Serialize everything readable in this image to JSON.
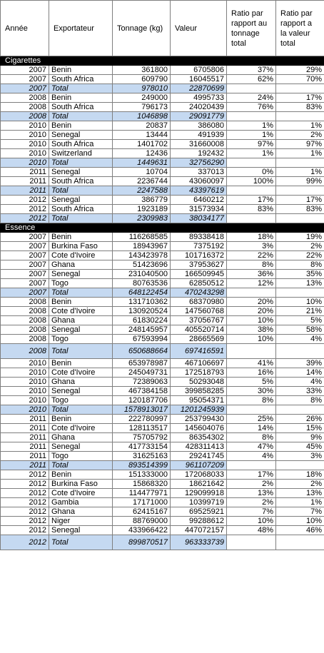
{
  "headers": {
    "annee": "Année",
    "exportateur": "Exportateur",
    "tonnage": "Tonnage (kg)",
    "valeur": "Valeur",
    "ratio_tonnage": "Ratio par rapport au tonnage total",
    "ratio_valeur": "Ratio par rapport a la valeur total"
  },
  "sections": [
    {
      "title": "Cigarettes",
      "rows": [
        {
          "year": "2007",
          "exporter": "Benin",
          "tonnage": "361800",
          "valeur": "6705806",
          "rt": "37%",
          "rv": "29%"
        },
        {
          "year": "2007",
          "exporter": "South Africa",
          "tonnage": "609790",
          "valeur": "16045517",
          "rt": "62%",
          "rv": "70%"
        },
        {
          "year": "2007",
          "exporter": "Total",
          "tonnage": "978010",
          "valeur": "22870699",
          "total": true
        },
        {
          "year": "2008",
          "exporter": "Benin",
          "tonnage": "249000",
          "valeur": "4995733",
          "rt": "24%",
          "rv": "17%"
        },
        {
          "year": "2008",
          "exporter": "South Africa",
          "tonnage": "796173",
          "valeur": "24020439",
          "rt": "76%",
          "rv": "83%"
        },
        {
          "year": "2008",
          "exporter": "Total",
          "tonnage": "1046898",
          "valeur": "29091779",
          "total": true
        },
        {
          "year": "2010",
          "exporter": "Benin",
          "tonnage": "20837",
          "valeur": "386080",
          "rt": "1%",
          "rv": "1%"
        },
        {
          "year": "2010",
          "exporter": "Senegal",
          "tonnage": "13444",
          "valeur": "491939",
          "rt": "1%",
          "rv": "2%"
        },
        {
          "year": "2010",
          "exporter": "South Africa",
          "tonnage": "1401702",
          "valeur": "31660008",
          "rt": "97%",
          "rv": "97%"
        },
        {
          "year": "2010",
          "exporter": "Switzerland",
          "tonnage": "12436",
          "valeur": "192432",
          "rt": "1%",
          "rv": "1%"
        },
        {
          "year": "2010",
          "exporter": "Total",
          "tonnage": "1449631",
          "valeur": "32756290",
          "total": true
        },
        {
          "year": "2011",
          "exporter": "Senegal",
          "tonnage": "10704",
          "valeur": "337013",
          "rt": "0%",
          "rv": "1%"
        },
        {
          "year": "2011",
          "exporter": "South Africa",
          "tonnage": "2236744",
          "valeur": "43060097",
          "rt": "100%",
          "rv": "99%"
        },
        {
          "year": "2011",
          "exporter": "Total",
          "tonnage": "2247588",
          "valeur": "43397619",
          "total": true
        },
        {
          "year": "2012",
          "exporter": "Senegal",
          "tonnage": "386779",
          "valeur": "6460212",
          "rt": "17%",
          "rv": "17%"
        },
        {
          "year": "2012",
          "exporter": "South Africa",
          "tonnage": "1923189",
          "valeur": "31573934",
          "rt": "83%",
          "rv": "83%"
        },
        {
          "year": "2012",
          "exporter": "Total",
          "tonnage": "2309983",
          "valeur": "38034177",
          "total": true
        }
      ]
    },
    {
      "title": "Essence",
      "rows": [
        {
          "year": "2007",
          "exporter": "Benin",
          "tonnage": "116268585",
          "valeur": "89338418",
          "rt": "18%",
          "rv": "19%"
        },
        {
          "year": "2007",
          "exporter": "Burkina Faso",
          "tonnage": "18943967",
          "valeur": "7375192",
          "rt": "3%",
          "rv": "2%"
        },
        {
          "year": "2007",
          "exporter": "Cote d'Ivoire",
          "tonnage": "143423978",
          "valeur": "101716372",
          "rt": "22%",
          "rv": "22%"
        },
        {
          "year": "2007",
          "exporter": "Ghana",
          "tonnage": "51423696",
          "valeur": "37953627",
          "rt": "8%",
          "rv": "8%"
        },
        {
          "year": "2007",
          "exporter": "Senegal",
          "tonnage": "231040500",
          "valeur": "166509945",
          "rt": "36%",
          "rv": "35%"
        },
        {
          "year": "2007",
          "exporter": "Togo",
          "tonnage": "80763536",
          "valeur": "62850512",
          "rt": "12%",
          "rv": "13%"
        },
        {
          "year": "2007",
          "exporter": "Total",
          "tonnage": "648122454",
          "valeur": "470243298",
          "total": true
        },
        {
          "year": "2008",
          "exporter": "Benin",
          "tonnage": "131710362",
          "valeur": "68370980",
          "rt": "20%",
          "rv": "10%"
        },
        {
          "year": "2008",
          "exporter": "Cote d'Ivoire",
          "tonnage": "130920524",
          "valeur": "147560768",
          "rt": "20%",
          "rv": "21%"
        },
        {
          "year": "2008",
          "exporter": "Ghana",
          "tonnage": "61830224",
          "valeur": "37056767",
          "rt": "10%",
          "rv": "5%"
        },
        {
          "year": "2008",
          "exporter": "Senegal",
          "tonnage": "248145957",
          "valeur": "405520714",
          "rt": "38%",
          "rv": "58%"
        },
        {
          "year": "2008",
          "exporter": "Togo",
          "tonnage": "67593994",
          "valeur": "28665569",
          "rt": "10%",
          "rv": "4%"
        },
        {
          "year": "2008",
          "exporter": "Total",
          "tonnage": "650688664",
          "valeur": "697416591",
          "total": true,
          "tall": true
        },
        {
          "year": "2010",
          "exporter": "Benin",
          "tonnage": "653978987",
          "valeur": "467106697",
          "rt": "41%",
          "rv": "39%"
        },
        {
          "year": "2010",
          "exporter": "Cote d'Ivoire",
          "tonnage": "245049731",
          "valeur": "172518793",
          "rt": "16%",
          "rv": "14%"
        },
        {
          "year": "2010",
          "exporter": "Ghana",
          "tonnage": "72389063",
          "valeur": "50293048",
          "rt": "5%",
          "rv": "4%"
        },
        {
          "year": "2010",
          "exporter": "Senegal",
          "tonnage": "467384158",
          "valeur": "399858285",
          "rt": "30%",
          "rv": "33%"
        },
        {
          "year": "2010",
          "exporter": "Togo",
          "tonnage": "120187706",
          "valeur": "95054371",
          "rt": "8%",
          "rv": "8%"
        },
        {
          "year": "2010",
          "exporter": "Total",
          "tonnage": "1578913017",
          "valeur": "1201245939",
          "total": true
        },
        {
          "year": "2011",
          "exporter": "Benin",
          "tonnage": "222780997",
          "valeur": "253799430",
          "rt": "25%",
          "rv": "26%"
        },
        {
          "year": "2011",
          "exporter": "Cote d'Ivoire",
          "tonnage": "128113517",
          "valeur": "145604076",
          "rt": "14%",
          "rv": "15%"
        },
        {
          "year": "2011",
          "exporter": "Ghana",
          "tonnage": "75705792",
          "valeur": "86354302",
          "rt": "8%",
          "rv": "9%"
        },
        {
          "year": "2011",
          "exporter": "Senegal",
          "tonnage": "417733154",
          "valeur": "428311413",
          "rt": "47%",
          "rv": "45%"
        },
        {
          "year": "2011",
          "exporter": "Togo",
          "tonnage": "31625163",
          "valeur": "29241745",
          "rt": "4%",
          "rv": "3%"
        },
        {
          "year": "2011",
          "exporter": "Total",
          "tonnage": "893514399",
          "valeur": "961107209",
          "total": true
        },
        {
          "year": "2012",
          "exporter": "Benin",
          "tonnage": "151333000",
          "valeur": "172068033",
          "rt": "17%",
          "rv": "18%"
        },
        {
          "year": "2012",
          "exporter": "Burkina Faso",
          "tonnage": "15868320",
          "valeur": "18621642",
          "rt": "2%",
          "rv": "2%"
        },
        {
          "year": "2012",
          "exporter": "Cote d'Ivoire",
          "tonnage": "114477971",
          "valeur": "129099918",
          "rt": "13%",
          "rv": "13%"
        },
        {
          "year": "2012",
          "exporter": "Gambia",
          "tonnage": "17171000",
          "valeur": "10399719",
          "rt": "2%",
          "rv": "1%"
        },
        {
          "year": "2012",
          "exporter": "Ghana",
          "tonnage": "62415167",
          "valeur": "69525921",
          "rt": "7%",
          "rv": "7%"
        },
        {
          "year": "2012",
          "exporter": "Niger",
          "tonnage": "88769000",
          "valeur": "99288612",
          "rt": "10%",
          "rv": "10%"
        },
        {
          "year": "2012",
          "exporter": "Senegal",
          "tonnage": "433966422",
          "valeur": "447072157",
          "rt": "48%",
          "rv": "46%"
        },
        {
          "year": "2012",
          "exporter": "Total",
          "tonnage": "899870517",
          "valeur": "963333739",
          "total": true,
          "tall": true
        }
      ]
    }
  ]
}
